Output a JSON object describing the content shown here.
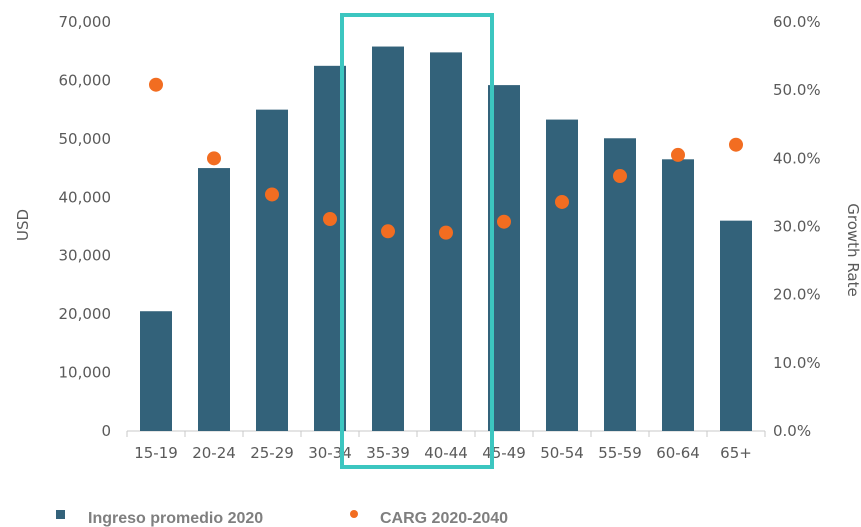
{
  "chart_data": {
    "type": "bar",
    "categories": [
      "15-19",
      "20-24",
      "25-29",
      "30-34",
      "35-39",
      "40-44",
      "45-49",
      "50-54",
      "55-59",
      "60-64",
      "65+"
    ],
    "series": [
      {
        "name": "Ingreso promedio 2020",
        "kind": "bar",
        "axis": "left",
        "color": "#33627a",
        "values": [
          20500,
          45000,
          55000,
          62500,
          65800,
          64800,
          59200,
          53300,
          50100,
          46500,
          36000
        ]
      },
      {
        "name": "CARG 2020-2040",
        "kind": "scatter",
        "axis": "right",
        "color": "#f26d21",
        "values": [
          50.8,
          40.0,
          34.7,
          31.1,
          29.3,
          29.1,
          30.7,
          33.6,
          37.4,
          40.5,
          42.0
        ]
      }
    ],
    "ylabel": "USD",
    "y2label": "Growth Rate",
    "ylim": [
      0,
      70000
    ],
    "y2lim": [
      0,
      60
    ],
    "yticks": [
      "0",
      "10,000",
      "20,000",
      "30,000",
      "40,000",
      "50,000",
      "60,000",
      "70,000"
    ],
    "y2ticks": [
      "0.0%",
      "10.0%",
      "20.0%",
      "30.0%",
      "40.0%",
      "50.0%",
      "60.0%"
    ],
    "highlight": {
      "categories": [
        "35-39",
        "40-44"
      ],
      "color": "#3cc6c0"
    },
    "legend_position": "bottom"
  }
}
